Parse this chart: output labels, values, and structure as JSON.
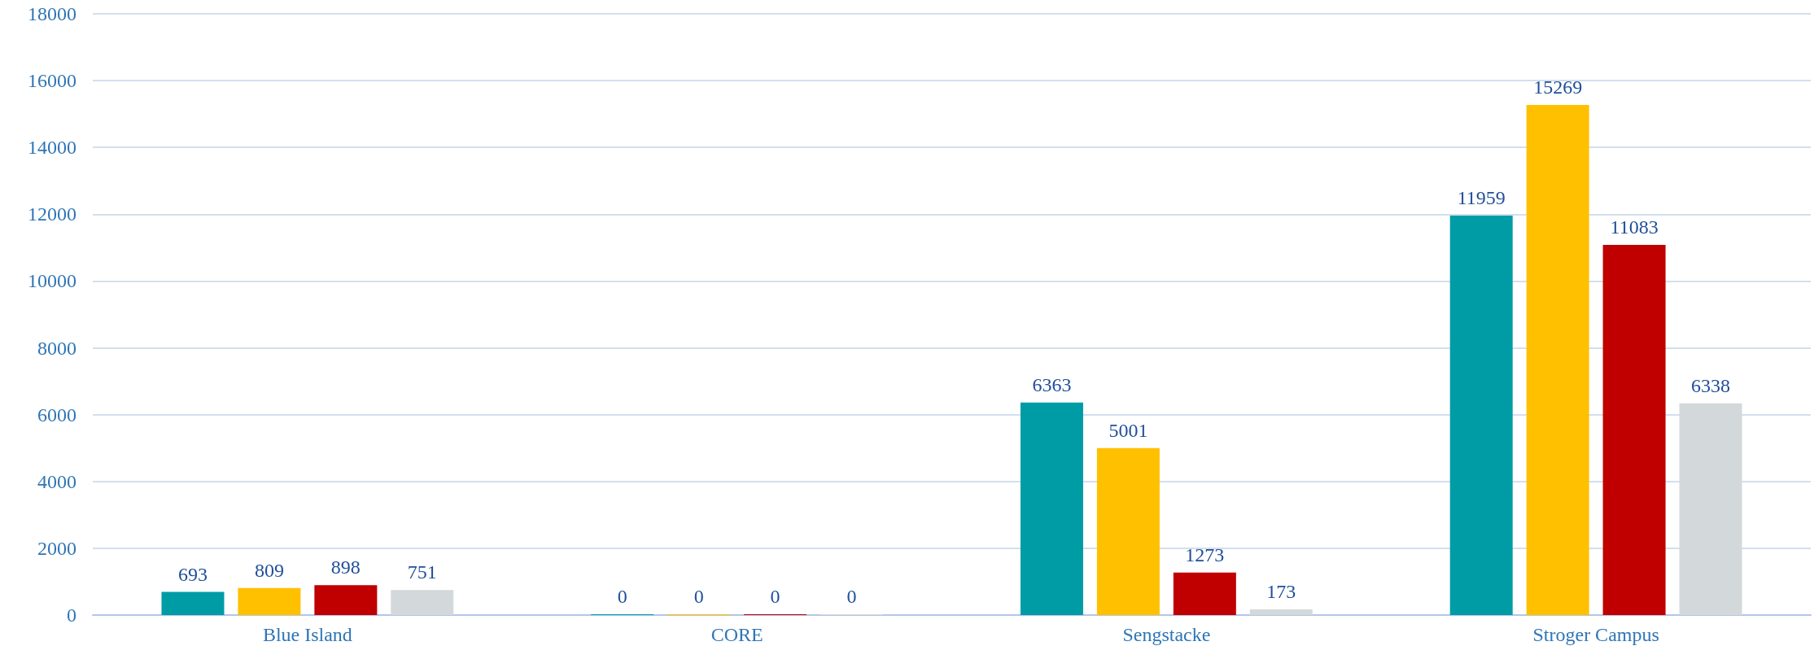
{
  "chart_data": {
    "type": "bar",
    "categories": [
      "Blue Island",
      "CORE",
      "Sengstacke",
      "Stroger Campus"
    ],
    "series": [
      {
        "color": "#009ca6",
        "values": [
          693,
          0,
          6363,
          11959
        ]
      },
      {
        "color": "#ffc000",
        "values": [
          809,
          0,
          5001,
          15269
        ]
      },
      {
        "color": "#c00000",
        "values": [
          898,
          0,
          1273,
          11083
        ]
      },
      {
        "color": "#d3d9da",
        "values": [
          751,
          0,
          173,
          6338
        ]
      }
    ],
    "ylim": [
      0,
      18000
    ],
    "yticks": [
      0,
      2000,
      4000,
      6000,
      8000,
      10000,
      12000,
      14000,
      16000,
      18000
    ],
    "grid": "y",
    "data_labels": true
  }
}
